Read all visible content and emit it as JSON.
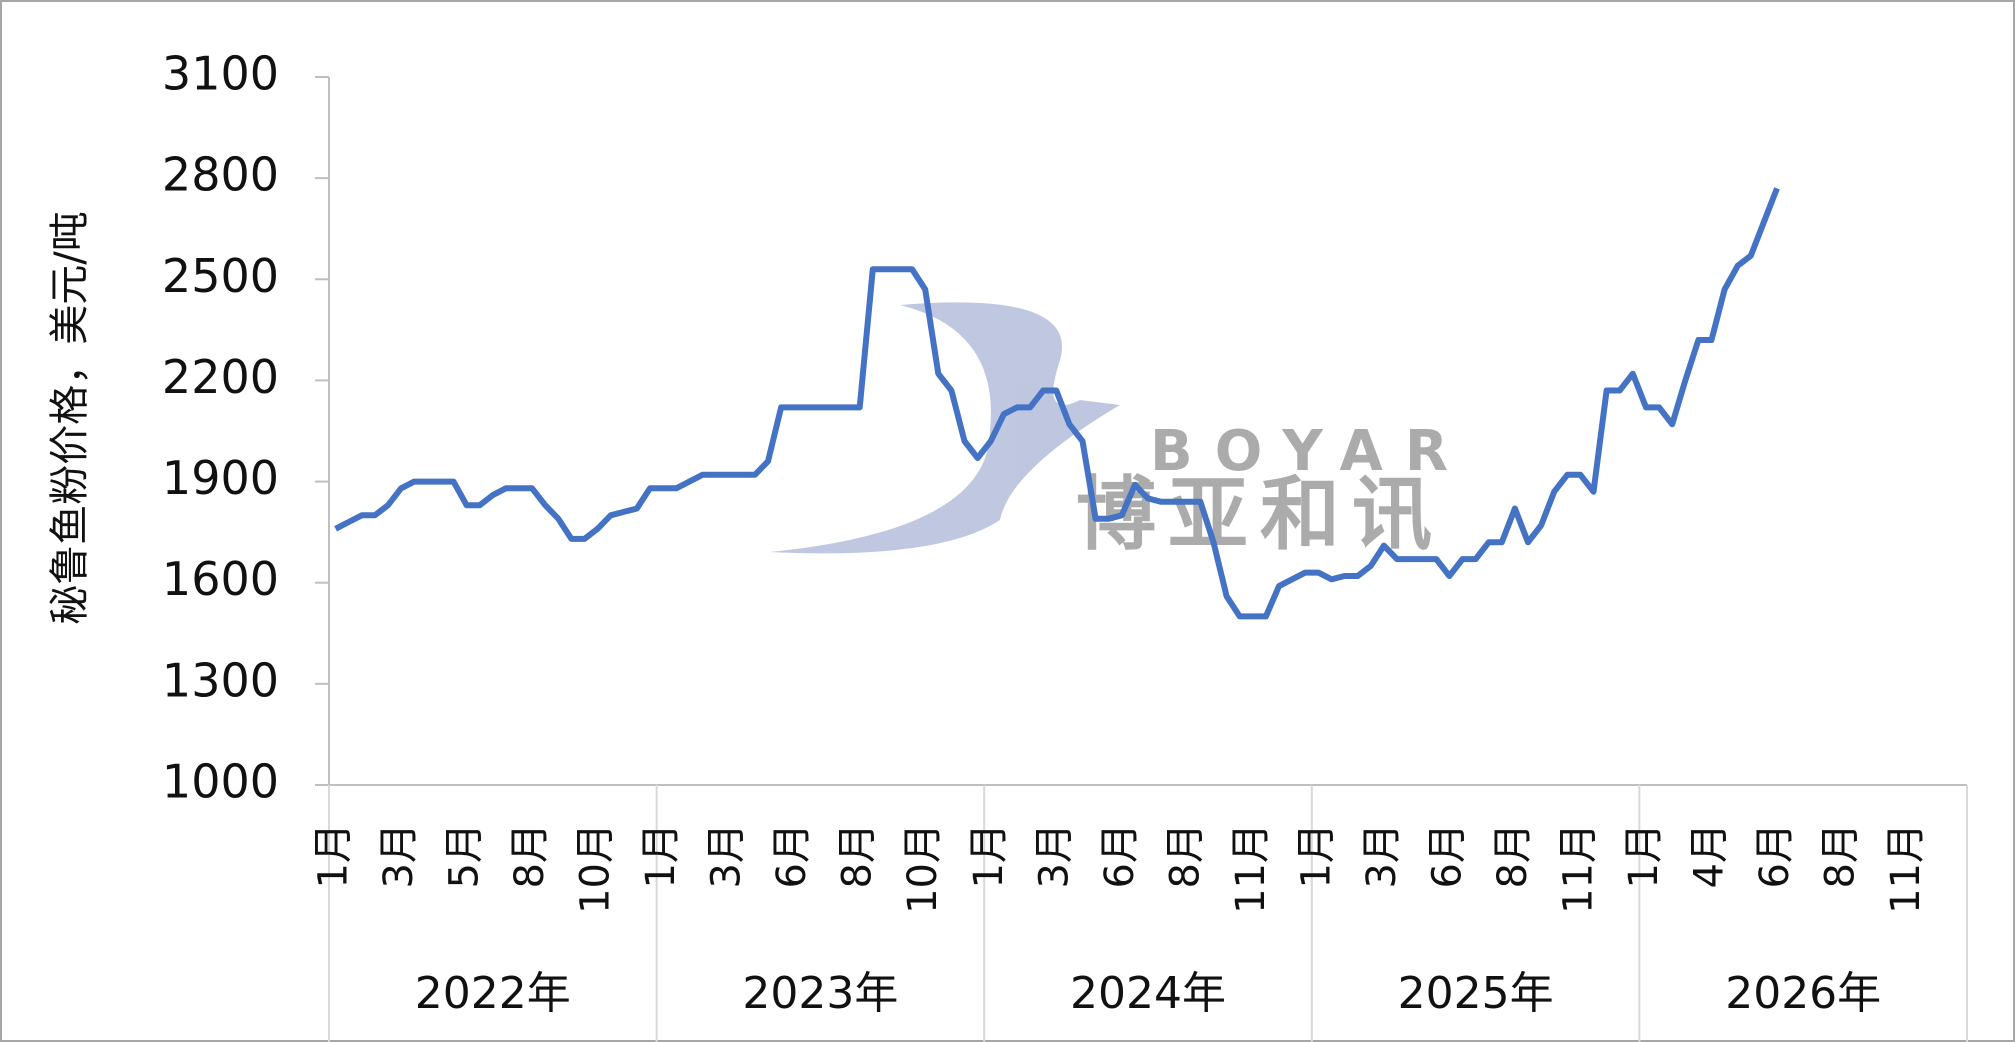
{
  "chart_data": {
    "type": "line",
    "y_label": "秘鲁鱼粉价格，美元/吨",
    "watermark": {
      "en": "BOYAR",
      "zh": "博亚和讯"
    },
    "groups": [
      "2022年",
      "2023年",
      "2024年",
      "2025年",
      "2026年"
    ],
    "categories": [
      "1月",
      null,
      null,
      null,
      null,
      "3月",
      null,
      null,
      null,
      null,
      "5月",
      null,
      null,
      null,
      null,
      "8月",
      null,
      null,
      null,
      null,
      "10月",
      null,
      null,
      null,
      null,
      "1月",
      null,
      null,
      null,
      null,
      "3月",
      null,
      null,
      null,
      null,
      "6月",
      null,
      null,
      null,
      null,
      "8月",
      null,
      null,
      null,
      null,
      "10月",
      null,
      null,
      null,
      null,
      "1月",
      null,
      null,
      null,
      null,
      "3月",
      null,
      null,
      null,
      null,
      "6月",
      null,
      null,
      null,
      null,
      "8月",
      null,
      null,
      null,
      null,
      "11月",
      null,
      null,
      null,
      null,
      "1月",
      null,
      null,
      null,
      null,
      "3月",
      null,
      null,
      null,
      null,
      "6月",
      null,
      null,
      null,
      null,
      "8月",
      null,
      null,
      null,
      null,
      "11月",
      null,
      null,
      null,
      null,
      "1月",
      null,
      null,
      null,
      null,
      "4月",
      null,
      null,
      null,
      null,
      "6月",
      null,
      null,
      null,
      null,
      "8月",
      null,
      null,
      null,
      null,
      "11月",
      null,
      null,
      null,
      null
    ],
    "series": [
      {
        "name": "秘鲁鱼粉价格",
        "color": "#4472c4",
        "values": [
          1760,
          1780,
          1800,
          1800,
          1830,
          1880,
          1900,
          1900,
          1900,
          1900,
          1830,
          1830,
          1860,
          1880,
          1880,
          1880,
          1830,
          1790,
          1730,
          1730,
          1760,
          1800,
          1810,
          1820,
          1880,
          1880,
          1880,
          1900,
          1920,
          1920,
          1920,
          1920,
          1920,
          1960,
          2120,
          2120,
          2120,
          2120,
          2120,
          2120,
          2120,
          2530,
          2530,
          2530,
          2530,
          2470,
          2220,
          2170,
          2020,
          1970,
          2020,
          2100,
          2120,
          2120,
          2170,
          2170,
          2070,
          2020,
          1790,
          1790,
          1800,
          1890,
          1850,
          1840,
          1840,
          1840,
          1840,
          1720,
          1560,
          1500,
          1500,
          1500,
          1590,
          1610,
          1630,
          1630,
          1610,
          1620,
          1620,
          1650,
          1710,
          1670,
          1670,
          1670,
          1670,
          1620,
          1670,
          1670,
          1720,
          1720,
          1820,
          1720,
          1770,
          1870,
          1920,
          1920,
          1870,
          2170,
          2170,
          2220,
          2120,
          2120,
          2070,
          2200,
          2320,
          2320,
          2470,
          2540,
          2570,
          2670,
          2770,
          null,
          null,
          null,
          null,
          null,
          null,
          null,
          null,
          null,
          null,
          null,
          null,
          null,
          null
        ]
      }
    ],
    "ylim": [
      1000,
      3100
    ],
    "yticks": [
      1000,
      1300,
      1600,
      1900,
      2200,
      2500,
      2800,
      3100
    ],
    "grid": false
  }
}
